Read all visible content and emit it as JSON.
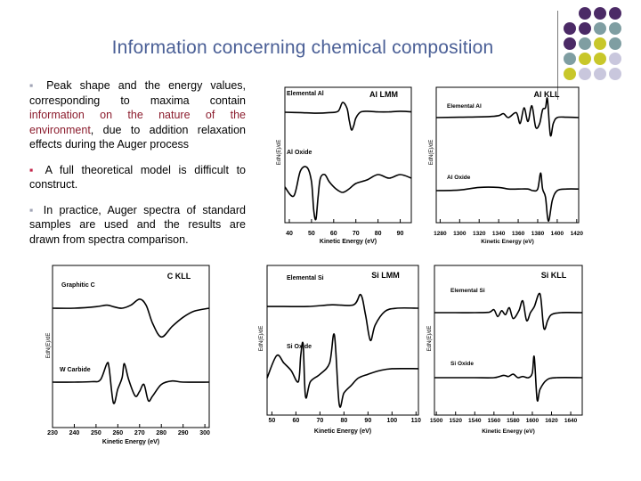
{
  "slide": {
    "title": "Information concerning chemical composition",
    "bullets": [
      {
        "parts": [
          {
            "text": "Peak shape and the energy values, corresponding to maxima contain ",
            "hl": false
          },
          {
            "text": "information on the nature of the environment",
            "hl": true
          },
          {
            "text": ", due to addition relaxation effects during the Auger process",
            "hl": false
          }
        ]
      },
      {
        "parts": [
          {
            "text": "A full theoretical model is difficult to construct.",
            "hl": false
          }
        ]
      },
      {
        "parts": [
          {
            "text": "In practice, Auger spectra of standard samples are used and the results are drawn from spectra comparison.",
            "hl": false
          }
        ]
      }
    ],
    "bullet_marker": "▪",
    "colors": {
      "title": "#4a5f96",
      "highlight": "#8c1d2e",
      "purple": "#4b2a66",
      "teal": "#7f9ea2",
      "olive": "#c8c72a",
      "lavender": "#c9c7dd"
    }
  },
  "chart_data": [
    {
      "type": "line",
      "title": "Al LMM",
      "xlabel": "Kinetic Energy (eV)",
      "ylabel": "EdN(E)/dE",
      "xlim": [
        38,
        95
      ],
      "xticks": [
        40,
        50,
        60,
        70,
        80,
        90
      ],
      "series": [
        {
          "name": "Elemental Al",
          "x": [
            38,
            45,
            52,
            58,
            62,
            64,
            66,
            67,
            68,
            69,
            70,
            72,
            75,
            80,
            85,
            90,
            95
          ],
          "y": [
            0,
            -0.02,
            -0.05,
            -0.02,
            0.05,
            0.5,
            0.2,
            -0.4,
            -0.9,
            -0.7,
            -0.3,
            0,
            0.05,
            0.02,
            0.02,
            0.05,
            0.02
          ]
        },
        {
          "name": "Al Oxide",
          "x": [
            38,
            42,
            45,
            48,
            50,
            51,
            52,
            53,
            54,
            56,
            58,
            61,
            64,
            67,
            70,
            75,
            80,
            85,
            90,
            95
          ],
          "y": [
            -0.05,
            -0.3,
            0.4,
            0.5,
            0.1,
            -0.7,
            -0.95,
            -0.3,
            0.2,
            0.3,
            0.1,
            -0.1,
            -0.2,
            -0.1,
            0.05,
            0.15,
            0.3,
            0.2,
            0.3,
            0.2
          ]
        }
      ]
    },
    {
      "type": "line",
      "title": "Al KLL",
      "xlabel": "Kinetic Energy (eV)",
      "ylabel": "EdN(E)/dE",
      "xlim": [
        1276,
        1422
      ],
      "xticks": [
        1280,
        1300,
        1320,
        1340,
        1360,
        1380,
        1400,
        1420
      ],
      "series": [
        {
          "name": "Elemental Al",
          "x": [
            1276,
            1300,
            1330,
            1340,
            1345,
            1350,
            1358,
            1362,
            1366,
            1370,
            1374,
            1378,
            1382,
            1385,
            1388,
            1390,
            1393,
            1396,
            1400,
            1410,
            1422
          ],
          "y": [
            0,
            0.02,
            0.05,
            0.1,
            0.2,
            0,
            0.25,
            -0.3,
            0.5,
            -0.2,
            0.6,
            -0.5,
            -0.3,
            0.4,
            0.5,
            0.95,
            -0.9,
            -0.3,
            0,
            0.02,
            0
          ]
        },
        {
          "name": "Al Oxide",
          "x": [
            1276,
            1300,
            1320,
            1340,
            1350,
            1360,
            1370,
            1375,
            1380,
            1383,
            1385,
            1388,
            1391,
            1395,
            1400,
            1410,
            1422
          ],
          "y": [
            0,
            0.02,
            0.1,
            0.1,
            0.05,
            0.05,
            0.05,
            0,
            0.05,
            0.55,
            0.05,
            -0.2,
            -0.95,
            -0.3,
            0,
            0.05,
            0.05
          ]
        }
      ]
    },
    {
      "type": "line",
      "title": "C KLL",
      "xlabel": "Kinetic Energy (eV)",
      "ylabel": "EdN(E)/dE",
      "xlim": [
        230,
        302
      ],
      "xticks": [
        230,
        240,
        250,
        260,
        270,
        280,
        290,
        300
      ],
      "series": [
        {
          "name": "Graphitic C",
          "x": [
            230,
            240,
            250,
            255,
            258,
            262,
            266,
            270,
            273,
            276,
            280,
            285,
            290,
            295,
            302
          ],
          "y": [
            0,
            0,
            0.05,
            0.1,
            0.05,
            0,
            0.1,
            0.3,
            0.1,
            -0.5,
            -0.95,
            -0.6,
            -0.3,
            -0.1,
            0
          ]
        },
        {
          "name": "W Carbide",
          "x": [
            230,
            240,
            248,
            252,
            255,
            256,
            258,
            260,
            262,
            263,
            265,
            268,
            270,
            272,
            274,
            276,
            280,
            285,
            290,
            302
          ],
          "y": [
            0,
            0,
            0.02,
            0.1,
            0.8,
            0.6,
            -0.9,
            -0.3,
            0.2,
            0.8,
            0.1,
            -0.6,
            -0.4,
            -0.1,
            -0.8,
            -0.6,
            -0.1,
            0.05,
            0,
            0
          ]
        }
      ]
    },
    {
      "type": "line",
      "title": "Si LMM",
      "xlabel": "Kinetic Energy (eV)",
      "ylabel": "EdN(E)/dE",
      "xlim": [
        48,
        111
      ],
      "xticks": [
        50,
        60,
        70,
        80,
        90,
        100,
        110
      ],
      "series": [
        {
          "name": "Elemental Si",
          "x": [
            48,
            55,
            65,
            75,
            84,
            87,
            89,
            91,
            93,
            97,
            102,
            111
          ],
          "y": [
            0.05,
            0.05,
            0.05,
            0.1,
            0.1,
            0.4,
            -0.2,
            -0.95,
            -0.5,
            -0.1,
            0,
            0
          ]
        },
        {
          "name": "Si Oxide",
          "x": [
            48,
            52,
            55,
            58,
            61,
            62,
            63,
            64,
            66,
            70,
            74,
            76,
            78,
            80,
            83,
            86,
            90,
            95,
            100,
            111
          ],
          "y": [
            -0.2,
            0.4,
            0.2,
            0,
            -0.3,
            0.4,
            0.7,
            -0.7,
            -0.3,
            -0.1,
            0.2,
            0.95,
            -0.9,
            -0.6,
            -0.4,
            -0.2,
            -0.1,
            0,
            0.05,
            0.05
          ]
        }
      ]
    },
    {
      "type": "line",
      "title": "Si KLL",
      "xlabel": "Kinetic Energy (eV)",
      "ylabel": "EdN(E)/dE",
      "xlim": [
        1498,
        1652
      ],
      "xticks": [
        1500,
        1520,
        1540,
        1560,
        1580,
        1600,
        1620,
        1640
      ],
      "series": [
        {
          "name": "Elemental Si",
          "x": [
            1498,
            1520,
            1540,
            1555,
            1560,
            1564,
            1568,
            1572,
            1576,
            1580,
            1586,
            1590,
            1594,
            1598,
            1602,
            1608,
            1612,
            1616,
            1620,
            1630,
            1652
          ],
          "y": [
            0,
            0,
            0,
            0.02,
            0.15,
            -0.2,
            0.1,
            -0.1,
            0.25,
            -0.3,
            0.1,
            0.6,
            -0.4,
            0,
            0.3,
            0.95,
            -0.8,
            -0.4,
            -0.1,
            0,
            0
          ]
        },
        {
          "name": "Si Oxide",
          "x": [
            1498,
            1520,
            1540,
            1560,
            1570,
            1575,
            1580,
            1585,
            1590,
            1596,
            1600,
            1602,
            1605,
            1608,
            1615,
            1625,
            1652
          ],
          "y": [
            0,
            0,
            0,
            0,
            0.1,
            0.05,
            0.15,
            0,
            0.05,
            0,
            0.2,
            0.9,
            -0.95,
            -0.5,
            -0.1,
            0,
            0
          ]
        }
      ]
    }
  ]
}
